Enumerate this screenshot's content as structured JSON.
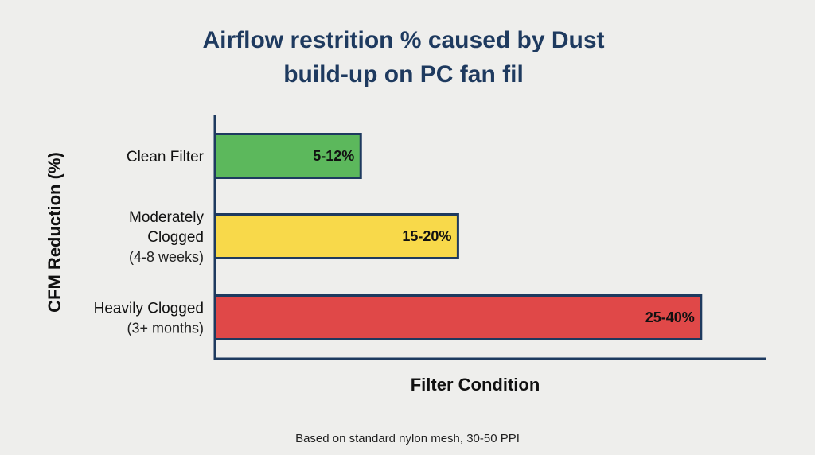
{
  "chart_data": {
    "type": "bar",
    "orientation": "horizontal",
    "title_lines": [
      "Airflow restrition % caused by Dust",
      "build-up on PC fan fil"
    ],
    "xlabel": "Filter Condition",
    "ylabel": "CFM Reduction (%)",
    "footnote": "Based on standard nylon mesh, 30-50 PPI",
    "xlim": [
      0,
      55
    ],
    "grid": false,
    "legend": "none",
    "bars": [
      {
        "category_lines": [
          "Clean Filter"
        ],
        "sub_lines": [],
        "range": [
          5,
          12
        ],
        "value": 12,
        "label": "5-12%",
        "color": "#5cb85c"
      },
      {
        "category_lines": [
          "Moderately",
          "Clogged"
        ],
        "sub_lines": [
          "(4-8 weeks)"
        ],
        "range": [
          15,
          20
        ],
        "value": 20,
        "label": "15-20%",
        "color": "#f8d94a"
      },
      {
        "category_lines": [
          "Heavily Clogged"
        ],
        "sub_lines": [
          "(3+ months)"
        ],
        "range": [
          25,
          40
        ],
        "value": 40,
        "label": "25-40%",
        "color": "#e04848"
      }
    ],
    "colors": {
      "title": "#1e3a5f",
      "axis": "#1e3a5f",
      "bar_stroke": "#1e3a5f"
    }
  }
}
